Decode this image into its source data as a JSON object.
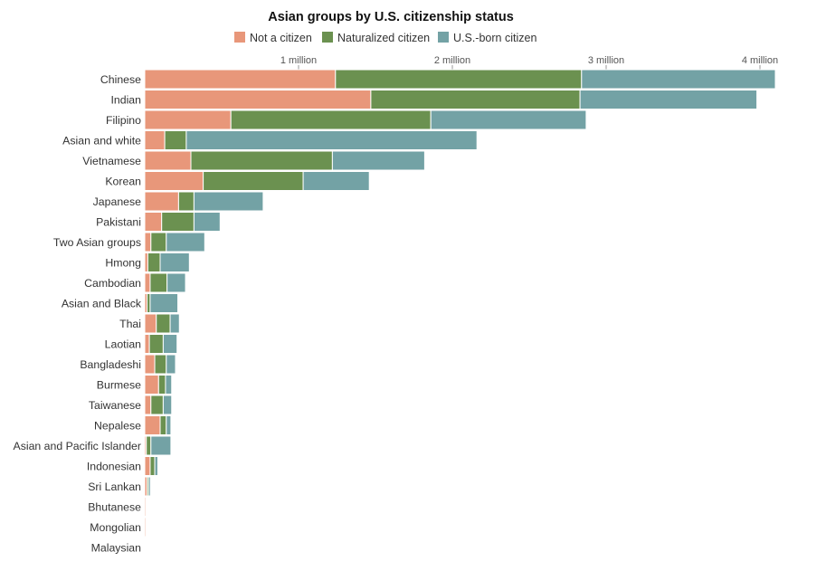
{
  "chart_data": {
    "type": "bar",
    "orientation": "horizontal",
    "stacked": true,
    "title": "Asian groups by U.S. citizenship status",
    "xlabel": "",
    "ylabel": "",
    "xlim": [
      0,
      4100000
    ],
    "grid": false,
    "legend_position": "top",
    "x_ticks": [
      {
        "value": 1000000,
        "label": "1 million"
      },
      {
        "value": 2000000,
        "label": "2 million"
      },
      {
        "value": 3000000,
        "label": "3 million"
      },
      {
        "value": 4000000,
        "label": "4 million"
      }
    ],
    "categories": [
      "Chinese",
      "Indian",
      "Filipino",
      "Asian and white",
      "Vietnamese",
      "Korean",
      "Japanese",
      "Pakistani",
      "Two Asian groups",
      "Hmong",
      "Cambodian",
      "Asian and Black",
      "Thai",
      "Laotian",
      "Bangladeshi",
      "Burmese",
      "Taiwanese",
      "Nepalese",
      "Asian and Pacific Islander",
      "Indonesian",
      "Sri Lankan",
      "Bhutanese",
      "Mongolian",
      "Malaysian"
    ],
    "series": [
      {
        "name": "Not a citizen",
        "color": "#e8977a",
        "values": [
          1240000,
          1470000,
          560000,
          130000,
          300000,
          380000,
          220000,
          110000,
          40000,
          20000,
          35000,
          15000,
          75000,
          30000,
          65000,
          90000,
          40000,
          100000,
          10000,
          35000,
          15000,
          8000,
          8000,
          5000
        ]
      },
      {
        "name": "Naturalized citizen",
        "color": "#6b9150",
        "values": [
          1600000,
          1360000,
          1300000,
          140000,
          920000,
          650000,
          100000,
          210000,
          100000,
          80000,
          110000,
          20000,
          90000,
          90000,
          75000,
          45000,
          80000,
          40000,
          30000,
          30000,
          10000,
          5000,
          4000,
          5000
        ]
      },
      {
        "name": "U.S.-born citizen",
        "color": "#73a2a5",
        "values": [
          1260000,
          1150000,
          1010000,
          1890000,
          600000,
          430000,
          450000,
          170000,
          250000,
          190000,
          120000,
          180000,
          60000,
          90000,
          60000,
          40000,
          55000,
          30000,
          130000,
          20000,
          12000,
          4000,
          3000,
          4000
        ]
      }
    ]
  }
}
